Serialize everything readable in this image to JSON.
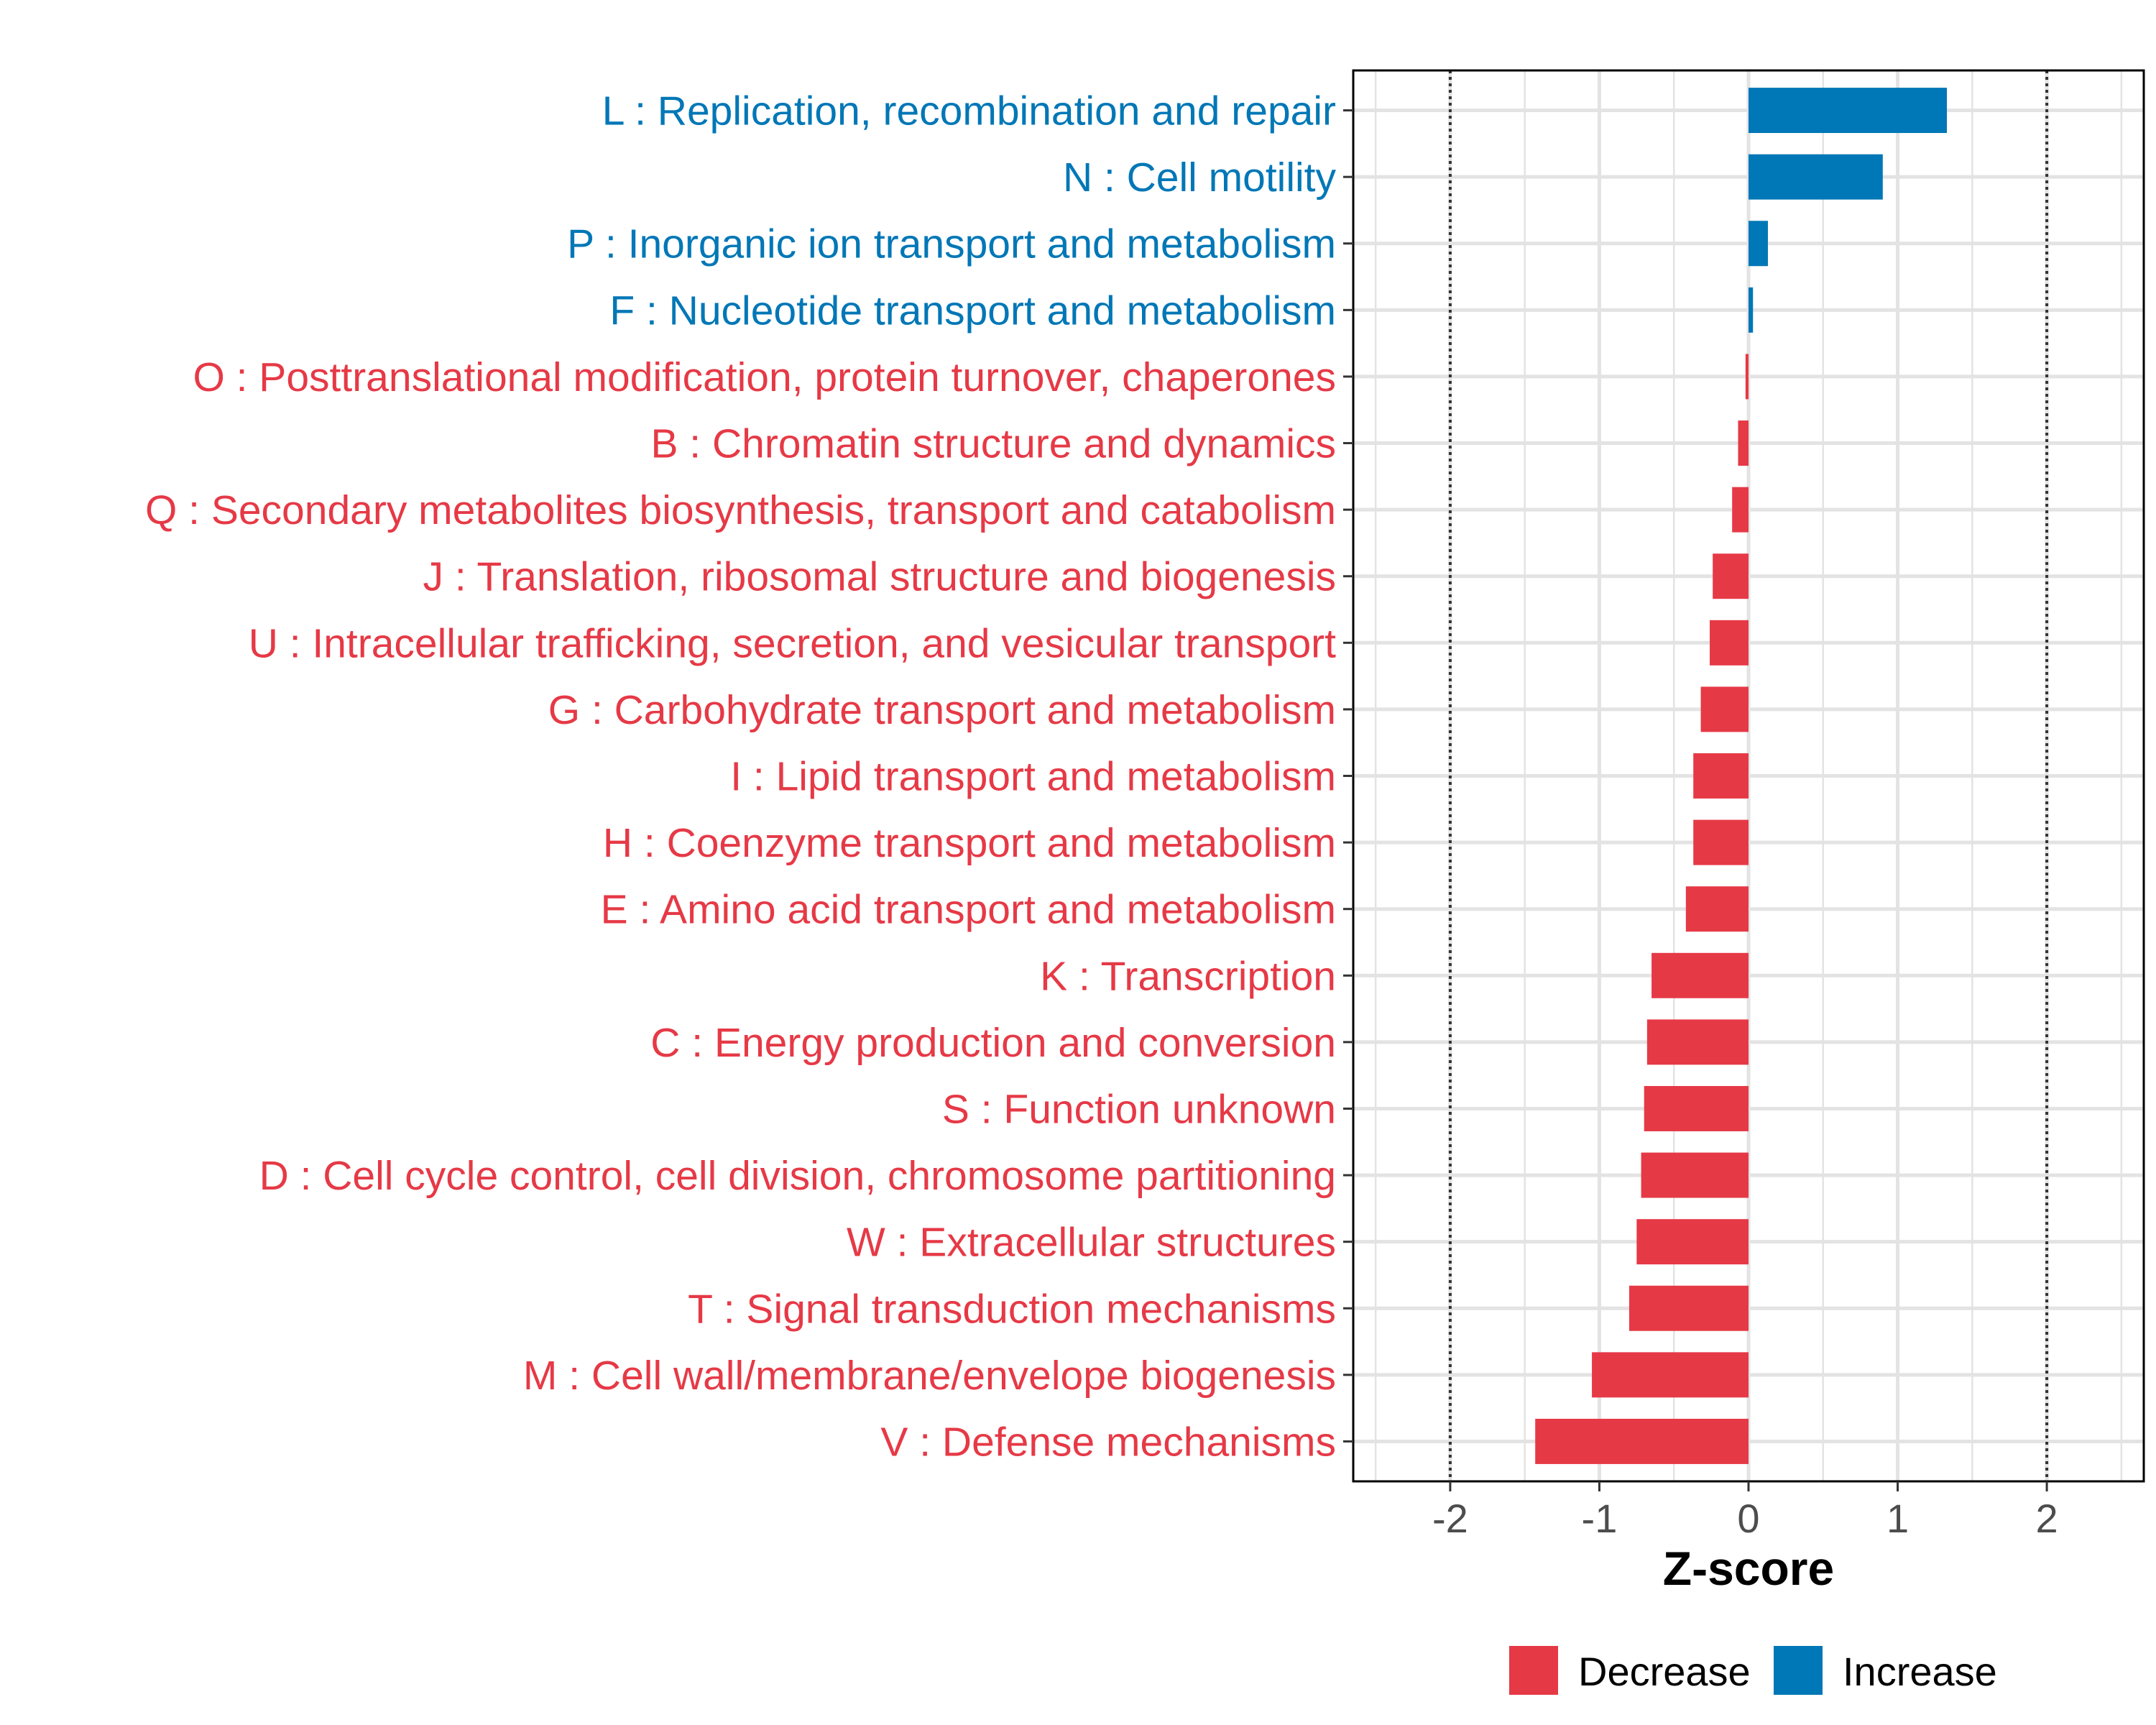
{
  "chart_data": {
    "type": "bar",
    "orientation": "horizontal",
    "xlabel": "Z-score",
    "ylabel": "",
    "xlim": [
      -2.65,
      2.65
    ],
    "x_ticks": [
      -2,
      -1,
      0,
      1,
      2
    ],
    "x_tick_labels": [
      "-2",
      "-1",
      "0",
      "1",
      "2"
    ],
    "reference_lines": [
      -2,
      2
    ],
    "grid": true,
    "legend_position": "bottom",
    "legend": [
      {
        "name": "Decrease",
        "color": "#E63946"
      },
      {
        "name": "Increase",
        "color": "#0077B6"
      }
    ],
    "categories": [
      "L : Replication, recombination and repair",
      "N : Cell motility",
      "P : Inorganic ion transport and metabolism",
      "F : Nucleotide transport and metabolism",
      "O : Posttranslational modification, protein turnover, chaperones",
      "B : Chromatin structure and dynamics",
      "Q : Secondary metabolites biosynthesis, transport and catabolism",
      "J : Translation, ribosomal structure and biogenesis",
      "U : Intracellular trafficking, secretion, and vesicular transport",
      "G : Carbohydrate transport and metabolism",
      "I : Lipid transport and metabolism",
      "H : Coenzyme transport and metabolism",
      "E : Amino acid transport and metabolism",
      "K : Transcription",
      "C : Energy production and conversion",
      "S : Function unknown",
      "D : Cell cycle control, cell division, chromosome partitioning",
      "W : Extracellular structures",
      "T : Signal transduction mechanisms",
      "M : Cell wall/membrane/envelope biogenesis",
      "V : Defense mechanisms"
    ],
    "values": [
      1.33,
      0.9,
      0.13,
      0.03,
      -0.02,
      -0.07,
      -0.11,
      -0.24,
      -0.26,
      -0.32,
      -0.37,
      -0.37,
      -0.42,
      -0.65,
      -0.68,
      -0.7,
      -0.72,
      -0.75,
      -0.8,
      -1.05,
      -1.43
    ],
    "groups": [
      "Increase",
      "Increase",
      "Increase",
      "Increase",
      "Decrease",
      "Decrease",
      "Decrease",
      "Decrease",
      "Decrease",
      "Decrease",
      "Decrease",
      "Decrease",
      "Decrease",
      "Decrease",
      "Decrease",
      "Decrease",
      "Decrease",
      "Decrease",
      "Decrease",
      "Decrease",
      "Decrease"
    ]
  }
}
